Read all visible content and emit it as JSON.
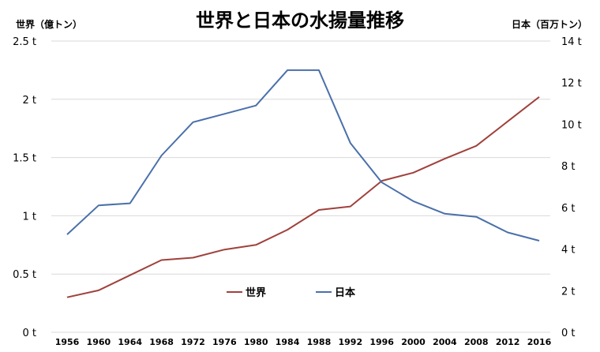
{
  "chart_data": {
    "type": "line",
    "title": "世界と日本の水揚量推移",
    "ylabel_left": "世界（億トン）",
    "ylabel_right": "日本（百万トン）",
    "categories": [
      "1956",
      "1960",
      "1964",
      "1968",
      "1972",
      "1976",
      "1980",
      "1984",
      "1988",
      "1992",
      "1996",
      "2000",
      "2004",
      "2008",
      "2012",
      "2016"
    ],
    "y_left": {
      "range": [
        0,
        2.5
      ],
      "ticks": [
        "0 t",
        "0.5 t",
        "1 t",
        "1.5 t",
        "2 t",
        "2.5 t"
      ],
      "tick_values": [
        0,
        0.5,
        1,
        1.5,
        2,
        2.5
      ]
    },
    "y_right": {
      "range": [
        0,
        14
      ],
      "ticks": [
        "0 t",
        "2 t",
        "4 t",
        "6 t",
        "8 t",
        "10 t",
        "12 t",
        "14 t"
      ],
      "tick_values": [
        0,
        2,
        4,
        6,
        8,
        10,
        12,
        14
      ]
    },
    "grid": true,
    "legend_placement": "bottom-center",
    "series": [
      {
        "name": "世界",
        "axis": "left",
        "color": "#a0413c",
        "values": [
          0.3,
          0.36,
          0.49,
          0.62,
          0.64,
          0.71,
          0.75,
          0.88,
          1.05,
          1.08,
          1.3,
          1.37,
          1.49,
          1.6,
          1.81,
          2.02
        ]
      },
      {
        "name": "日本",
        "axis": "right",
        "color": "#4a70aa",
        "values": [
          4.7,
          6.1,
          6.2,
          8.5,
          10.1,
          10.5,
          10.9,
          12.6,
          12.6,
          9.1,
          7.2,
          6.3,
          5.7,
          5.55,
          4.8,
          4.4
        ]
      }
    ]
  }
}
